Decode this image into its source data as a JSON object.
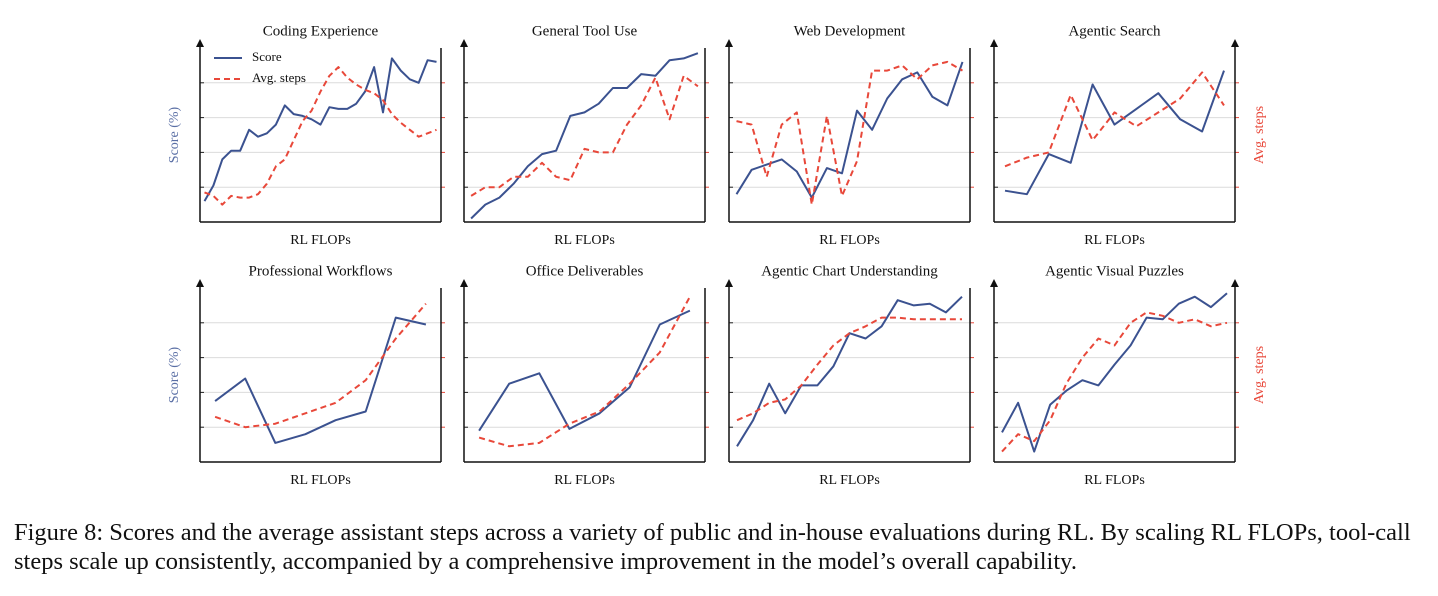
{
  "chart_data": [
    {
      "type": "line",
      "title": "Coding Experience",
      "xlabel": "RL FLOPs",
      "ylabel": "Score (%)",
      "legend": "upper left",
      "grid": true,
      "x": [
        0,
        1,
        2,
        3,
        4,
        5,
        6,
        7,
        8,
        9,
        10,
        11,
        12,
        13,
        14,
        15,
        16,
        17,
        18,
        19,
        20,
        21,
        22,
        23,
        24,
        25,
        26
      ],
      "xlim": [
        -0.5,
        26.5
      ],
      "ylim": [
        0,
        100
      ],
      "yticks": [
        20,
        40,
        60,
        80
      ],
      "y2lim": [
        0,
        100
      ],
      "y2ticks": [
        20,
        40,
        60,
        80
      ],
      "series": [
        {
          "name": "Score",
          "color": "#3b5290",
          "values": [
            12,
            21,
            36,
            41,
            41,
            53,
            49,
            51,
            56,
            67,
            62,
            61,
            59,
            56,
            66,
            65,
            65,
            68,
            75,
            89,
            63,
            94,
            87,
            82,
            80,
            93,
            92
          ]
        },
        {
          "name": "Avg. steps",
          "color": "#e8483a",
          "style": "dashed",
          "axis": "y2",
          "values": [
            17,
            15,
            10,
            15,
            14,
            14,
            16,
            22,
            32,
            36,
            47,
            58,
            64,
            75,
            84,
            89,
            83,
            79,
            76,
            74,
            70,
            62,
            57,
            53,
            49,
            51,
            53
          ]
        }
      ]
    },
    {
      "type": "line",
      "title": "General Tool Use",
      "xlabel": "RL FLOPs",
      "grid": true,
      "x": [
        0,
        1,
        2,
        3,
        4,
        5,
        6,
        7,
        8,
        9,
        10,
        11,
        12,
        13,
        14,
        15,
        16
      ],
      "xlim": [
        -0.5,
        16.5
      ],
      "ylim": [
        0,
        100
      ],
      "yticks": [
        20,
        40,
        60,
        80
      ],
      "y2lim": [
        0,
        100
      ],
      "y2ticks": [
        20,
        40,
        60,
        80
      ],
      "series": [
        {
          "name": "Score",
          "color": "#3b5290",
          "values": [
            2,
            10,
            14,
            22,
            32,
            39,
            41,
            61,
            63,
            68,
            77,
            77,
            85,
            84,
            93,
            94,
            97
          ]
        },
        {
          "name": "Avg. steps",
          "color": "#e8483a",
          "style": "dashed",
          "axis": "y2",
          "values": [
            15,
            20,
            20,
            26,
            26,
            34,
            26,
            24,
            42,
            40,
            40,
            56,
            67,
            83,
            59,
            84,
            78
          ]
        }
      ]
    },
    {
      "type": "line",
      "title": "Web Development",
      "xlabel": "RL FLOPs",
      "grid": true,
      "x": [
        0,
        1,
        2,
        3,
        4,
        5,
        6,
        7,
        8,
        9,
        10,
        11,
        12,
        13,
        14,
        15
      ],
      "xlim": [
        -0.5,
        15.5
      ],
      "ylim": [
        0,
        100
      ],
      "yticks": [
        20,
        40,
        60,
        80
      ],
      "y2lim": [
        0,
        100
      ],
      "y2ticks": [
        20,
        40,
        60,
        80
      ],
      "series": [
        {
          "name": "Score",
          "color": "#3b5290",
          "values": [
            16,
            30,
            33,
            36,
            29,
            14,
            31,
            28,
            64,
            53,
            71,
            82,
            86,
            72,
            67,
            92
          ]
        },
        {
          "name": "Avg. steps",
          "color": "#e8483a",
          "style": "dashed",
          "axis": "y2",
          "values": [
            58,
            56,
            26,
            56,
            63,
            10,
            61,
            15,
            35,
            87,
            87,
            90,
            82,
            90,
            92,
            87
          ]
        }
      ]
    },
    {
      "type": "line",
      "title": "Agentic Search",
      "xlabel": "RL FLOPs",
      "y2label": "Avg. steps",
      "grid": true,
      "x": [
        0,
        1,
        2,
        3,
        4,
        5,
        6,
        7,
        8,
        9,
        10
      ],
      "xlim": [
        -0.5,
        10.5
      ],
      "ylim": [
        0,
        100
      ],
      "yticks": [
        20,
        40,
        60,
        80
      ],
      "y2lim": [
        0,
        100
      ],
      "y2ticks": [
        20,
        40,
        60,
        80
      ],
      "series": [
        {
          "name": "Score",
          "color": "#3b5290",
          "values": [
            18,
            16,
            39,
            34,
            79,
            56,
            65,
            74,
            59,
            52,
            87
          ]
        },
        {
          "name": "Avg. steps",
          "color": "#e8483a",
          "style": "dashed",
          "axis": "y2",
          "values": [
            32,
            37,
            40,
            73,
            47,
            63,
            55,
            63,
            71,
            86,
            67
          ]
        }
      ]
    },
    {
      "type": "line",
      "title": "Professional Workflows",
      "xlabel": "RL FLOPs",
      "ylabel": "Score (%)",
      "grid": true,
      "x": [
        0,
        1,
        2,
        3,
        4,
        5,
        6,
        7
      ],
      "xlim": [
        -0.5,
        7.5
      ],
      "ylim": [
        0,
        100
      ],
      "yticks": [
        20,
        40,
        60,
        80
      ],
      "y2lim": [
        0,
        100
      ],
      "y2ticks": [
        20,
        40,
        60,
        80
      ],
      "series": [
        {
          "name": "Score",
          "color": "#3b5290",
          "values": [
            35,
            48,
            11,
            16,
            24,
            29,
            83,
            79
          ]
        },
        {
          "name": "Avg. steps",
          "color": "#e8483a",
          "style": "dashed",
          "axis": "y2",
          "values": [
            26,
            20,
            22,
            28,
            34,
            47,
            71,
            91
          ]
        }
      ]
    },
    {
      "type": "line",
      "title": "Office Deliverables",
      "xlabel": "RL FLOPs",
      "grid": true,
      "x": [
        0,
        1,
        2,
        3,
        4,
        5,
        6,
        7
      ],
      "xlim": [
        -0.5,
        7.5
      ],
      "ylim": [
        0,
        100
      ],
      "yticks": [
        20,
        40,
        60,
        80
      ],
      "y2lim": [
        0,
        100
      ],
      "y2ticks": [
        20,
        40,
        60,
        80
      ],
      "series": [
        {
          "name": "Score",
          "color": "#3b5290",
          "values": [
            18,
            45,
            51,
            19,
            28,
            43,
            79,
            87
          ]
        },
        {
          "name": "Avg. steps",
          "color": "#e8483a",
          "style": "dashed",
          "axis": "y2",
          "values": [
            14,
            9,
            11,
            22,
            29,
            45,
            63,
            95
          ]
        }
      ]
    },
    {
      "type": "line",
      "title": "Agentic Chart Understanding",
      "xlabel": "RL FLOPs",
      "grid": true,
      "x": [
        0,
        1,
        2,
        3,
        4,
        5,
        6,
        7,
        8,
        9,
        10,
        11,
        12,
        13,
        14
      ],
      "xlim": [
        -0.5,
        14.5
      ],
      "ylim": [
        0,
        100
      ],
      "yticks": [
        20,
        40,
        60,
        80
      ],
      "y2lim": [
        0,
        100
      ],
      "y2ticks": [
        20,
        40,
        60,
        80
      ],
      "series": [
        {
          "name": "Score",
          "color": "#3b5290",
          "values": [
            9,
            24,
            45,
            28,
            44,
            44,
            55,
            74,
            71,
            78,
            93,
            90,
            91,
            86,
            95
          ]
        },
        {
          "name": "Avg. steps",
          "color": "#e8483a",
          "style": "dashed",
          "axis": "y2",
          "values": [
            24,
            28,
            34,
            36,
            44,
            56,
            67,
            74,
            78,
            83,
            83,
            82,
            82,
            82,
            82
          ]
        }
      ]
    },
    {
      "type": "line",
      "title": "Agentic Visual Puzzles",
      "xlabel": "RL FLOPs",
      "y2label": "Avg. steps",
      "grid": true,
      "x": [
        0,
        1,
        2,
        3,
        4,
        5,
        6,
        7,
        8,
        9,
        10,
        11,
        12,
        13,
        14
      ],
      "xlim": [
        -0.5,
        14.5
      ],
      "ylim": [
        0,
        100
      ],
      "yticks": [
        20,
        40,
        60,
        80
      ],
      "y2lim": [
        0,
        100
      ],
      "y2ticks": [
        20,
        40,
        60,
        80
      ],
      "series": [
        {
          "name": "Score",
          "color": "#3b5290",
          "values": [
            17,
            34,
            6,
            33,
            41,
            47,
            44,
            56,
            67,
            83,
            82,
            91,
            95,
            89,
            97
          ]
        },
        {
          "name": "Avg. steps",
          "color": "#e8483a",
          "style": "dashed",
          "axis": "y2",
          "values": [
            6,
            16,
            12,
            24,
            45,
            60,
            71,
            67,
            80,
            86,
            84,
            80,
            82,
            78,
            80
          ]
        }
      ]
    }
  ],
  "caption": "Figure 8: Scores and the average assistant steps across a variety of public and in-house evaluations during RL. By scaling RL FLOPs, tool-call steps scale up consistently, accompanied by a comprehensive improvement in the model’s overall capability."
}
